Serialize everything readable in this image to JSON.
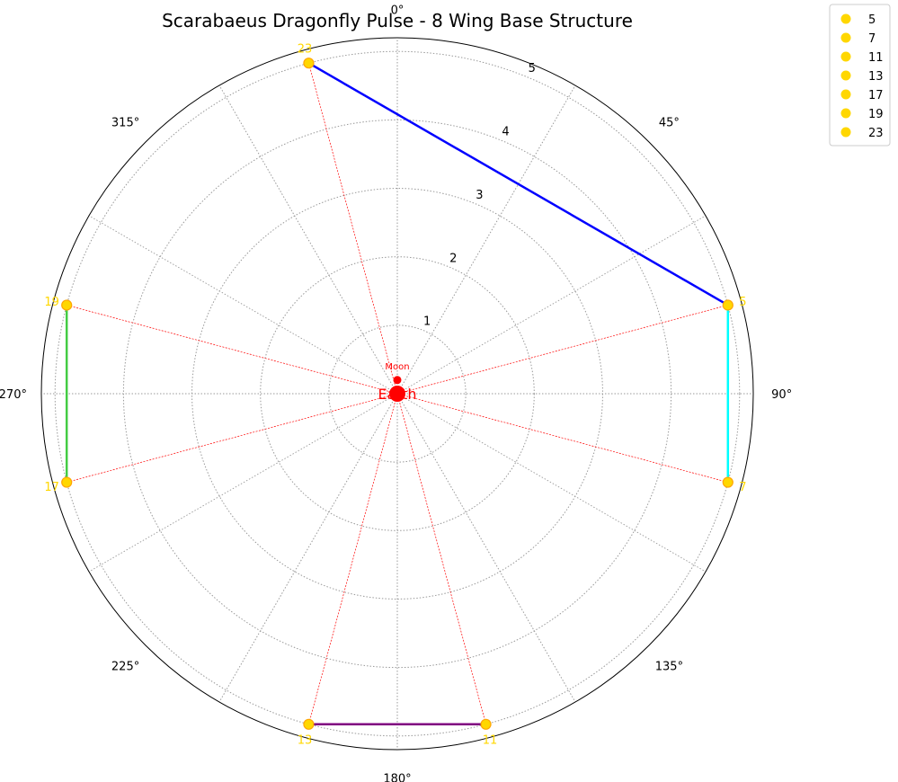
{
  "chart_data": {
    "type": "polar-scatter",
    "title": "Scarabaeus Dragonfly Pulse - 8 Wing Base Structure",
    "angle_zero": "top",
    "angle_direction": "clockwise",
    "r_ticks": [
      "1",
      "2",
      "3",
      "4",
      "5"
    ],
    "r_max": 5.2,
    "angle_ticks": [
      {
        "deg": 0,
        "label": "0°"
      },
      {
        "deg": 45,
        "label": "45°"
      },
      {
        "deg": 90,
        "label": "90°"
      },
      {
        "deg": 135,
        "label": "135°"
      },
      {
        "deg": 180,
        "label": "180°"
      },
      {
        "deg": 225,
        "label": "225°"
      },
      {
        "deg": 270,
        "label": "270°"
      },
      {
        "deg": 315,
        "label": "315°"
      }
    ],
    "grid": true,
    "center_labels": {
      "earth": "Earth",
      "moon": "Moon"
    },
    "moon_r": 0.2,
    "points": [
      {
        "label": "5",
        "theta_deg": 75,
        "r": 5.0
      },
      {
        "label": "7",
        "theta_deg": 105,
        "r": 5.0
      },
      {
        "label": "11",
        "theta_deg": 165,
        "r": 5.0
      },
      {
        "label": "13",
        "theta_deg": 195,
        "r": 5.0
      },
      {
        "label": "17",
        "theta_deg": 255,
        "r": 5.0
      },
      {
        "label": "19",
        "theta_deg": 285,
        "r": 5.0
      },
      {
        "label": "23",
        "theta_deg": 345,
        "r": 5.0
      }
    ],
    "connections": [
      {
        "from": "23",
        "to": "5",
        "color": "#0000FF"
      },
      {
        "from": "5",
        "to": "7",
        "color": "#00FFFF"
      },
      {
        "from": "11",
        "to": "13",
        "color": "#800080"
      },
      {
        "from": "17",
        "to": "19",
        "color": "#44CC44"
      }
    ],
    "legend": {
      "placement": "outside-top-right",
      "entries": [
        "5",
        "7",
        "11",
        "13",
        "17",
        "19",
        "23"
      ]
    },
    "colors": {
      "point": "#FFD700",
      "point_edge": "#FFA500",
      "earth": "#FF0000",
      "spoke": "#FF0000",
      "grid": "#999999"
    }
  }
}
